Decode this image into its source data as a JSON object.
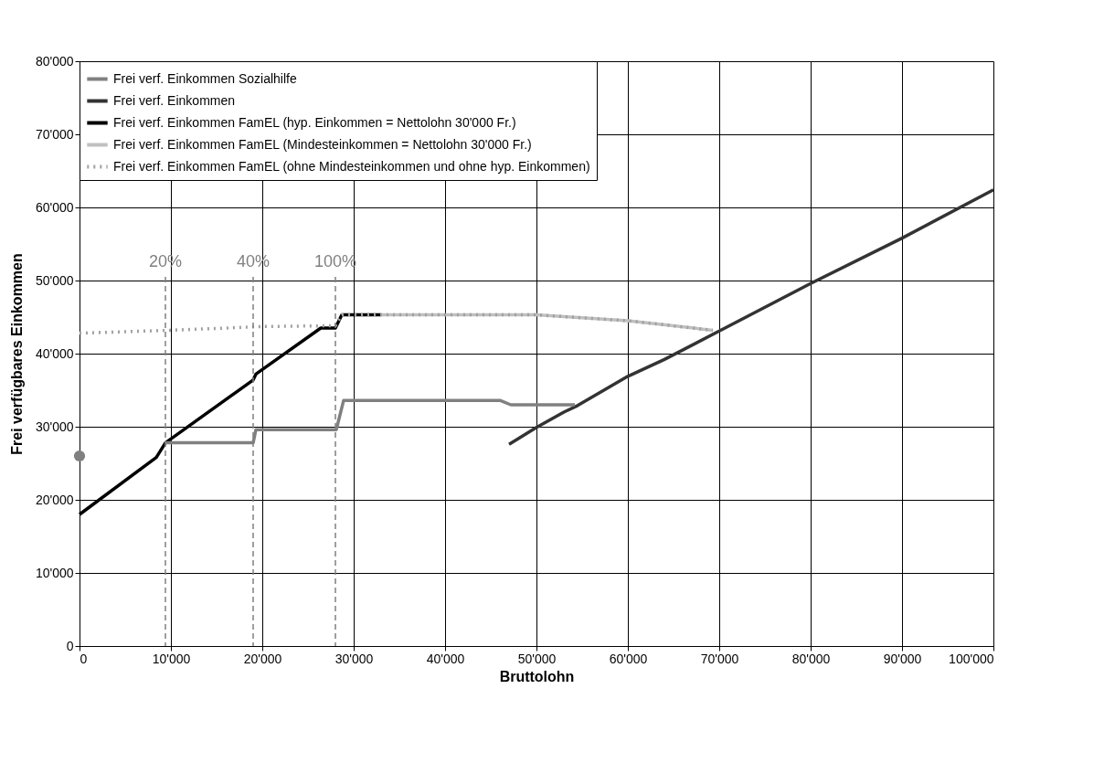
{
  "chart_data": {
    "type": "line",
    "xlabel": "Bruttolohn",
    "ylabel": "Frei verfügbares Einkommen",
    "xlim": [
      0,
      100000
    ],
    "xticks": [
      0,
      {
        "value": 10000,
        "label": "10'000"
      },
      {
        "value": 20000,
        "label": "20'000"
      },
      {
        "value": 30000,
        "label": "30'000"
      },
      {
        "value": 40000,
        "label": "40'000"
      },
      {
        "value": 50000,
        "label": "50'000"
      },
      {
        "value": 60000,
        "label": "60'000"
      },
      {
        "value": 70000,
        "label": "70'000"
      },
      {
        "value": 80000,
        "label": "80'000"
      },
      {
        "value": 90000,
        "label": "90'000"
      },
      {
        "value": 100000,
        "label": "100'000"
      }
    ],
    "ylim": [
      0,
      80000
    ],
    "yticks": [
      0,
      {
        "value": 10000,
        "label": "10'000"
      },
      {
        "value": 20000,
        "label": "20'000"
      },
      {
        "value": 30000,
        "label": "30'000"
      },
      {
        "value": 40000,
        "label": "40'000"
      },
      {
        "value": 50000,
        "label": "50'000"
      },
      {
        "value": 60000,
        "label": "60'000"
      },
      {
        "value": 70000,
        "label": "70'000"
      },
      {
        "value": 80000,
        "label": "80'000"
      }
    ],
    "grid": true,
    "legend": "top left",
    "line_style": "solid",
    "series": [
      {
        "name": "Frei verf. Einkommen Sozialhilfe",
        "color": "#808080",
        "x": [
          9340,
          19000,
          19300,
          28100,
          28900,
          46000,
          47200,
          54200
        ],
        "values": [
          27800,
          27800,
          29600,
          29600,
          33600,
          33600,
          33000,
          33000
        ]
      },
      {
        "name": "Frei verf. Einkommen",
        "color": "#333333",
        "x": [
          47000,
          50000,
          53000,
          54500,
          60000,
          64000,
          70000,
          80000,
          90000,
          100000
        ],
        "values": [
          27600,
          29900,
          32000,
          32900,
          36900,
          39200,
          43100,
          49600,
          55800,
          62400
        ]
      },
      {
        "name": "Frei verf. Einkommen FamEL (hyp. Einkommen = Nettolohn 30'000 Fr.)",
        "color": "#000000",
        "x": [
          0,
          8400,
          9400,
          19000,
          19300,
          26400,
          28000,
          28700,
          33000
        ],
        "values": [
          18000,
          25800,
          27800,
          36400,
          37200,
          43500,
          43500,
          45300,
          45300
        ]
      },
      {
        "name": "Frei verf. Einkommen FamEL (Mindesteinkommen = Nettolohn 30'000 Fr.)",
        "color": "#c0c0c0",
        "x": [
          33000,
          50000,
          60000,
          69300
        ],
        "values": [
          45300,
          45300,
          44500,
          43200
        ]
      },
      {
        "name": "Frei verf. Einkommen FamEL (ohne Mindesteinkommen und ohne hyp. Einkommen)",
        "color": "#a0a0a0",
        "line_style": "dotted",
        "x": [
          0,
          10000,
          20000,
          26400,
          28000,
          28700,
          50000,
          60000,
          69300
        ],
        "values": [
          42800,
          43200,
          43700,
          43800,
          43800,
          45300,
          45300,
          44500,
          43200
        ]
      },
      {
        "type": "scatter",
        "marker": "circle",
        "color": "#808080",
        "x": [
          0
        ],
        "values": [
          26000
        ]
      }
    ],
    "ref_lines": [
      {
        "axis": "x",
        "value": 9400,
        "color": "#808080",
        "line_style": "dashed"
      },
      {
        "axis": "x",
        "value": 19000,
        "color": "#808080",
        "line_style": "dashed"
      },
      {
        "axis": "x",
        "value": 28000,
        "color": "#808080",
        "line_style": "dashed"
      }
    ],
    "annotations": [
      {
        "text": "20%",
        "x": 9400,
        "y": 51000
      },
      {
        "text": "40%",
        "x": 19000,
        "y": 51000
      },
      {
        "text": "100%",
        "x": 28000,
        "y": 51000
      }
    ]
  }
}
